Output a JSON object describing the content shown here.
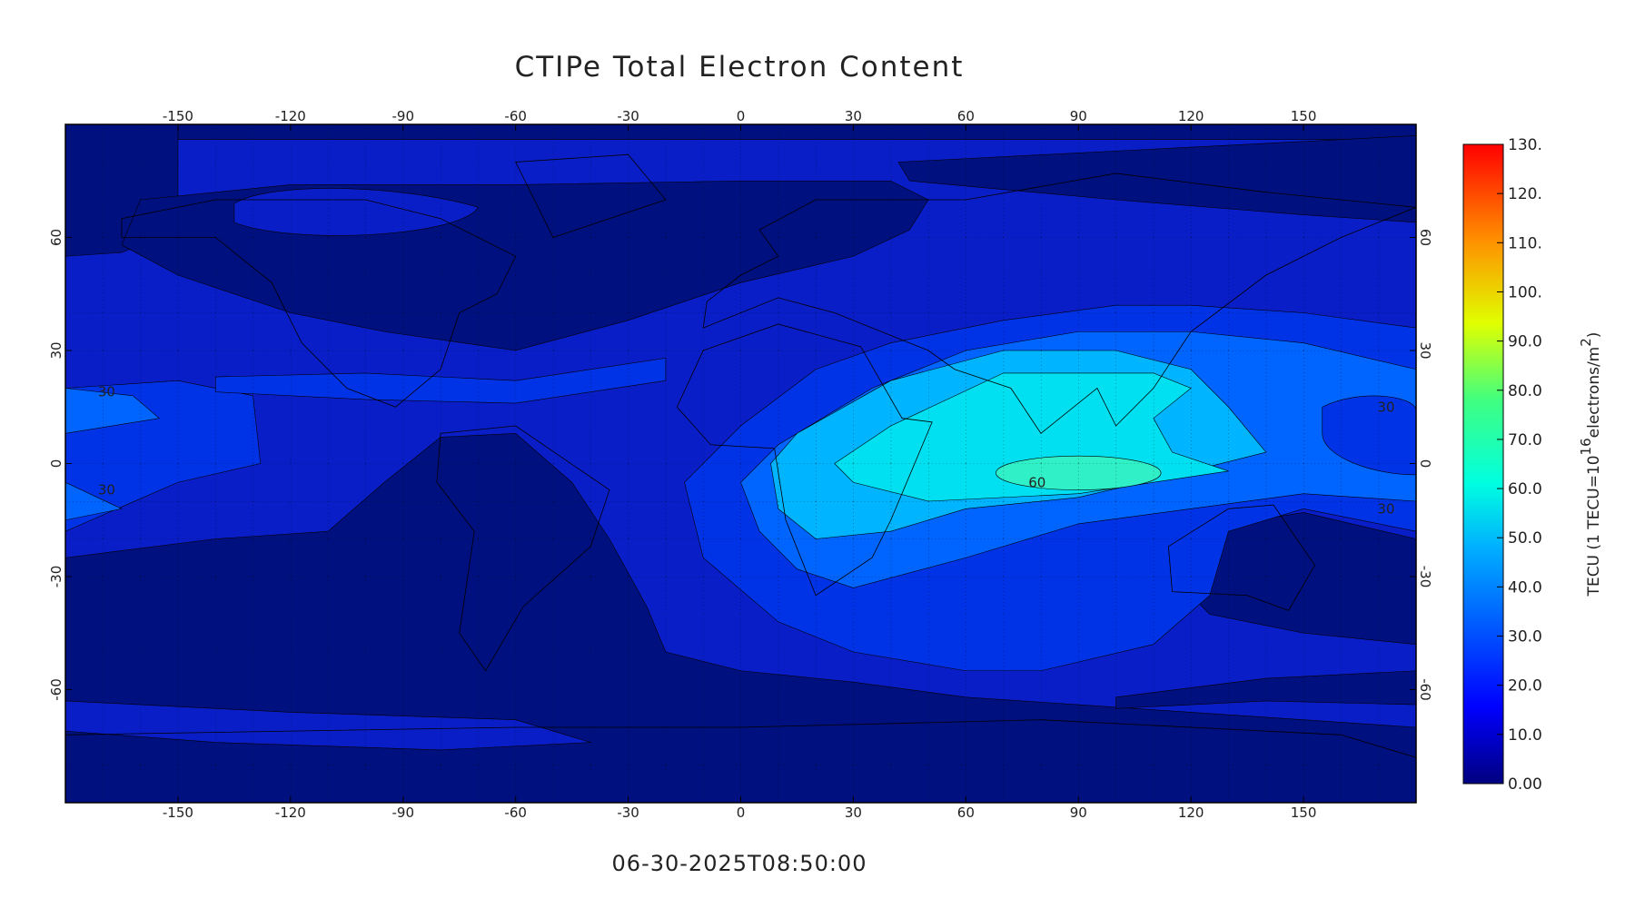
{
  "title": "CTIPe Total Electron Content",
  "timestamp": "06-30-2025T08:50:00",
  "map": {
    "xlim": [
      -180,
      180
    ],
    "ylim": [
      -90,
      90
    ],
    "xticks": [
      -150,
      -120,
      -90,
      -60,
      -30,
      0,
      30,
      60,
      90,
      120,
      150
    ],
    "yticks": [
      -60,
      -30,
      0,
      30,
      60
    ],
    "contour_labels": [
      30,
      30,
      60,
      30,
      30
    ]
  },
  "colorbar": {
    "label": [
      "TECU (1 TECU=10",
      "16",
      "electrons/m",
      "2",
      ")"
    ],
    "lim": [
      0,
      130
    ],
    "ticks": [
      {
        "value": 0,
        "label": "0.00"
      },
      {
        "value": 10,
        "label": "10.0"
      },
      {
        "value": 20,
        "label": "20.0"
      },
      {
        "value": 30,
        "label": "30.0"
      },
      {
        "value": 40,
        "label": "40.0"
      },
      {
        "value": 50,
        "label": "50.0"
      },
      {
        "value": 60,
        "label": "60.0"
      },
      {
        "value": 70,
        "label": "70.0"
      },
      {
        "value": 80,
        "label": "80.0"
      },
      {
        "value": 90,
        "label": "90.0"
      },
      {
        "value": 100,
        "label": "100."
      },
      {
        "value": 110,
        "label": "110."
      },
      {
        "value": 120,
        "label": "120."
      },
      {
        "value": 130,
        "label": "130."
      }
    ]
  }
}
